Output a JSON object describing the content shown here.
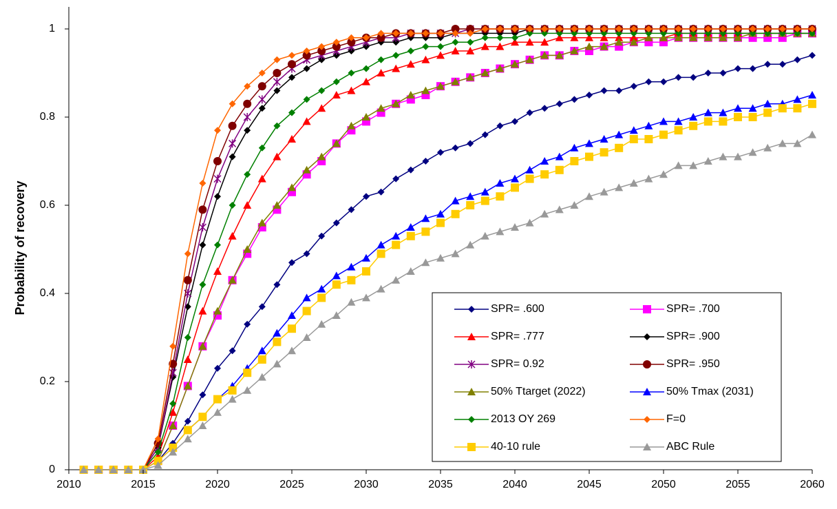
{
  "chart_data": {
    "type": "line",
    "y_label": "Probability of recovery",
    "x": [
      2011,
      2012,
      2013,
      2014,
      2015,
      2016,
      2017,
      2018,
      2019,
      2020,
      2021,
      2022,
      2023,
      2024,
      2025,
      2026,
      2027,
      2028,
      2029,
      2030,
      2031,
      2032,
      2033,
      2034,
      2035,
      2036,
      2037,
      2038,
      2039,
      2040,
      2041,
      2042,
      2043,
      2044,
      2045,
      2046,
      2047,
      2048,
      2049,
      2050,
      2051,
      2052,
      2053,
      2054,
      2055,
      2056,
      2057,
      2058,
      2059,
      2060
    ],
    "xlim": [
      2010,
      2060
    ],
    "xticks": [
      2010,
      2015,
      2020,
      2025,
      2030,
      2035,
      2040,
      2045,
      2050,
      2055,
      2060
    ],
    "ylim": [
      0,
      1.05
    ],
    "yticks": [
      0,
      0.2,
      0.4,
      0.6,
      0.8,
      1
    ],
    "series": [
      {
        "name": "SPR= .600",
        "color": "#000080",
        "marker": "diamond",
        "values": [
          0,
          0,
          0,
          0,
          0,
          0.02,
          0.06,
          0.11,
          0.17,
          0.23,
          0.27,
          0.33,
          0.37,
          0.42,
          0.47,
          0.49,
          0.53,
          0.56,
          0.59,
          0.62,
          0.63,
          0.66,
          0.68,
          0.7,
          0.72,
          0.73,
          0.74,
          0.76,
          0.78,
          0.79,
          0.81,
          0.82,
          0.83,
          0.84,
          0.85,
          0.86,
          0.86,
          0.87,
          0.88,
          0.88,
          0.89,
          0.89,
          0.9,
          0.9,
          0.91,
          0.91,
          0.92,
          0.92,
          0.93,
          0.94
        ]
      },
      {
        "name": "SPR= .700",
        "color": "#FF00FF",
        "marker": "square",
        "values": [
          0,
          0,
          0,
          0,
          0,
          0.02,
          0.1,
          0.19,
          0.28,
          0.35,
          0.43,
          0.49,
          0.55,
          0.59,
          0.63,
          0.67,
          0.7,
          0.74,
          0.77,
          0.79,
          0.81,
          0.83,
          0.84,
          0.85,
          0.87,
          0.88,
          0.89,
          0.9,
          0.91,
          0.92,
          0.93,
          0.94,
          0.94,
          0.95,
          0.95,
          0.96,
          0.96,
          0.97,
          0.97,
          0.97,
          0.98,
          0.98,
          0.98,
          0.98,
          0.98,
          0.98,
          0.98,
          0.98,
          0.99,
          0.99
        ]
      },
      {
        "name": "SPR= .777",
        "color": "#FF0000",
        "marker": "triangle",
        "values": [
          0,
          0,
          0,
          0,
          0,
          0.03,
          0.13,
          0.25,
          0.36,
          0.45,
          0.53,
          0.6,
          0.66,
          0.71,
          0.75,
          0.79,
          0.82,
          0.85,
          0.86,
          0.88,
          0.9,
          0.91,
          0.92,
          0.93,
          0.94,
          0.95,
          0.95,
          0.96,
          0.96,
          0.97,
          0.97,
          0.97,
          0.98,
          0.98,
          0.98,
          0.98,
          0.98,
          0.98,
          0.98,
          0.98,
          0.99,
          0.99,
          0.99,
          0.99,
          0.99,
          0.99,
          0.99,
          0.99,
          0.99,
          0.99
        ]
      },
      {
        "name": "SPR= .900",
        "color": "#000000",
        "marker": "diamond",
        "values": [
          0,
          0,
          0,
          0,
          0,
          0.05,
          0.21,
          0.37,
          0.51,
          0.62,
          0.71,
          0.77,
          0.82,
          0.86,
          0.89,
          0.91,
          0.93,
          0.94,
          0.95,
          0.96,
          0.97,
          0.97,
          0.98,
          0.98,
          0.98,
          0.99,
          0.99,
          0.99,
          0.99,
          0.99,
          1,
          1,
          1,
          1,
          1,
          1,
          1,
          1,
          1,
          1,
          1,
          1,
          1,
          1,
          1,
          1,
          1,
          1,
          1,
          1
        ]
      },
      {
        "name": "SPR= 0.92",
        "color": "#800080",
        "marker": "cross",
        "values": [
          0,
          0,
          0,
          0,
          0,
          0.05,
          0.22,
          0.4,
          0.55,
          0.66,
          0.74,
          0.8,
          0.84,
          0.88,
          0.91,
          0.93,
          0.94,
          0.95,
          0.96,
          0.97,
          0.98,
          0.98,
          0.99,
          0.99,
          0.99,
          0.99,
          1,
          1,
          1,
          1,
          1,
          1,
          1,
          1,
          1,
          1,
          1,
          1,
          1,
          1,
          1,
          1,
          1,
          1,
          1,
          1,
          1,
          1,
          1,
          1
        ]
      },
      {
        "name": "SPR= .950",
        "color": "#800000",
        "marker": "circle",
        "values": [
          0,
          0,
          0,
          0,
          0,
          0.06,
          0.24,
          0.43,
          0.59,
          0.7,
          0.78,
          0.83,
          0.87,
          0.9,
          0.92,
          0.94,
          0.95,
          0.96,
          0.97,
          0.98,
          0.98,
          0.99,
          0.99,
          0.99,
          0.99,
          1,
          1,
          1,
          1,
          1,
          1,
          1,
          1,
          1,
          1,
          1,
          1,
          1,
          1,
          1,
          1,
          1,
          1,
          1,
          1,
          1,
          1,
          1,
          1,
          1
        ]
      },
      {
        "name": "50% Ttarget (2022)",
        "color": "#808000",
        "marker": "triangle",
        "values": [
          0,
          0,
          0,
          0,
          0,
          0.02,
          0.1,
          0.19,
          0.28,
          0.36,
          0.43,
          0.5,
          0.56,
          0.6,
          0.64,
          0.68,
          0.71,
          0.74,
          0.78,
          0.8,
          0.82,
          0.83,
          0.85,
          0.86,
          0.87,
          0.88,
          0.89,
          0.9,
          0.91,
          0.92,
          0.93,
          0.94,
          0.94,
          0.95,
          0.96,
          0.96,
          0.97,
          0.97,
          0.98,
          0.98,
          0.98,
          0.98,
          0.98,
          0.98,
          0.98,
          0.99,
          0.99,
          0.99,
          0.99,
          0.99
        ]
      },
      {
        "name": "50% Tmax (2031)",
        "color": "#0000FF",
        "marker": "triangle",
        "values": [
          0,
          0,
          0,
          0,
          0,
          0.02,
          0.05,
          0.09,
          0.12,
          0.16,
          0.19,
          0.23,
          0.27,
          0.31,
          0.35,
          0.39,
          0.41,
          0.44,
          0.46,
          0.48,
          0.51,
          0.53,
          0.55,
          0.57,
          0.58,
          0.61,
          0.62,
          0.63,
          0.65,
          0.66,
          0.68,
          0.7,
          0.71,
          0.73,
          0.74,
          0.75,
          0.76,
          0.77,
          0.78,
          0.79,
          0.79,
          0.8,
          0.81,
          0.81,
          0.82,
          0.82,
          0.83,
          0.83,
          0.84,
          0.85
        ]
      },
      {
        "name": "2013 OY 269",
        "color": "#008000",
        "marker": "diamond",
        "values": [
          0,
          0,
          0,
          0,
          0,
          0.04,
          0.15,
          0.3,
          0.42,
          0.51,
          0.6,
          0.67,
          0.73,
          0.78,
          0.81,
          0.84,
          0.86,
          0.88,
          0.9,
          0.91,
          0.93,
          0.94,
          0.95,
          0.96,
          0.96,
          0.97,
          0.97,
          0.98,
          0.98,
          0.98,
          0.99,
          0.99,
          0.99,
          0.99,
          0.99,
          0.99,
          0.99,
          0.99,
          0.99,
          0.99,
          0.99,
          0.99,
          0.99,
          0.99,
          0.99,
          0.99,
          0.99,
          0.99,
          0.99,
          0.99
        ]
      },
      {
        "name": "F=0",
        "color": "#FF6600",
        "marker": "diamond",
        "values": [
          0,
          0,
          0,
          0,
          0,
          0.07,
          0.28,
          0.49,
          0.65,
          0.77,
          0.83,
          0.87,
          0.9,
          0.93,
          0.94,
          0.95,
          0.96,
          0.97,
          0.98,
          0.98,
          0.99,
          0.99,
          0.99,
          0.99,
          0.99,
          0.99,
          0.99,
          1,
          1,
          1,
          1,
          1,
          1,
          1,
          1,
          1,
          1,
          1,
          1,
          1,
          1,
          1,
          1,
          1,
          1,
          1,
          1,
          1,
          1,
          1
        ]
      },
      {
        "name": "40-10 rule",
        "color": "#FFCC00",
        "marker": "square",
        "values": [
          0,
          0,
          0,
          0,
          0,
          0.02,
          0.05,
          0.09,
          0.12,
          0.16,
          0.18,
          0.22,
          0.25,
          0.29,
          0.32,
          0.36,
          0.39,
          0.42,
          0.43,
          0.45,
          0.49,
          0.51,
          0.53,
          0.54,
          0.56,
          0.58,
          0.6,
          0.61,
          0.62,
          0.64,
          0.66,
          0.67,
          0.68,
          0.7,
          0.71,
          0.72,
          0.73,
          0.75,
          0.75,
          0.76,
          0.77,
          0.78,
          0.79,
          0.79,
          0.8,
          0.8,
          0.81,
          0.82,
          0.82,
          0.83
        ]
      },
      {
        "name": "ABC Rule",
        "color": "#999999",
        "marker": "triangle",
        "values": [
          0,
          0,
          0,
          0,
          0,
          0.01,
          0.04,
          0.07,
          0.1,
          0.13,
          0.16,
          0.18,
          0.21,
          0.24,
          0.27,
          0.3,
          0.33,
          0.35,
          0.38,
          0.39,
          0.41,
          0.43,
          0.45,
          0.47,
          0.48,
          0.49,
          0.51,
          0.53,
          0.54,
          0.55,
          0.56,
          0.58,
          0.59,
          0.6,
          0.62,
          0.63,
          0.64,
          0.65,
          0.66,
          0.67,
          0.69,
          0.69,
          0.7,
          0.71,
          0.71,
          0.72,
          0.73,
          0.74,
          0.74,
          0.76
        ]
      }
    ]
  }
}
